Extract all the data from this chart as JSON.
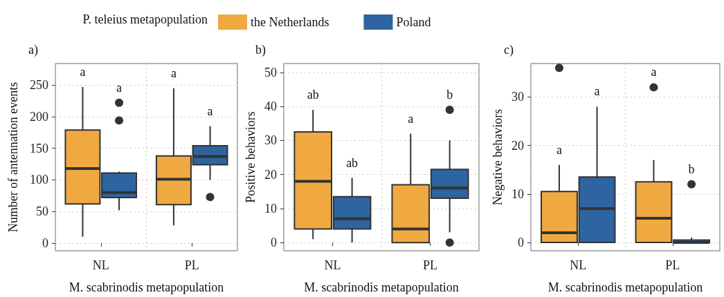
{
  "chart_data": [
    {
      "type": "box",
      "title": "a)",
      "legend_title": "P. teleius metapopulation",
      "xlabel": "M. scabrinodis metapopulation",
      "ylabel": "Number of antennation events",
      "categories": [
        "NL",
        "PL"
      ],
      "ylim": [
        -12,
        284
      ],
      "yticks": [
        0,
        50,
        100,
        150,
        200,
        250
      ],
      "grid": true,
      "legend": "top",
      "series": [
        {
          "name": "the Netherlands",
          "color": "#f0a940",
          "boxes": [
            {
              "low": 10,
              "q1": 62,
              "median": 118,
              "q3": 179,
              "high": 247
            },
            {
              "low": 28,
              "q1": 61,
              "median": 101,
              "q3": 138,
              "high": 245
            }
          ]
        },
        {
          "name": "Poland",
          "color": "#2e64a0",
          "boxes": [
            {
              "low": 52,
              "q1": 72,
              "median": 80,
              "q3": 111,
              "high": 113,
              "outliers": [
                222,
                194
              ]
            },
            {
              "low": 100,
              "q1": 124,
              "median": 137,
              "q3": 154,
              "high": 185,
              "outliers": [
                73
              ]
            }
          ]
        }
      ],
      "annotations": [
        "a",
        "a",
        "a",
        "a"
      ]
    },
    {
      "type": "box",
      "title": "b)",
      "xlabel": "M. scabrinodis metapopulation",
      "ylabel": "Positive behaviors",
      "categories": [
        "NL",
        "PL"
      ],
      "ylim": [
        -2.4,
        52.6
      ],
      "yticks": [
        0,
        10,
        20,
        30,
        40,
        50
      ],
      "grid": true,
      "legend": false,
      "series": [
        {
          "color": "#f0a940",
          "boxes": [
            {
              "low": 1,
              "q1": 4,
              "median": 18,
              "q3": 32.5,
              "high": 39
            },
            {
              "low": 0,
              "q1": 0,
              "median": 4,
              "q3": 17,
              "high": 32
            }
          ]
        },
        {
          "color": "#2e64a0",
          "boxes": [
            {
              "low": 0,
              "q1": 4,
              "median": 7,
              "q3": 13.5,
              "high": 19
            },
            {
              "low": 3,
              "q1": 13,
              "median": 16,
              "q3": 21.5,
              "high": 30,
              "outliers": [
                39,
                0
              ]
            }
          ]
        }
      ],
      "annotations": [
        "ab",
        "ab",
        "a",
        "b"
      ]
    },
    {
      "type": "box",
      "title": "c)",
      "xlabel": "M. scabrinodis metapopulation",
      "ylabel": "Negative behaviors",
      "categories": [
        "NL",
        "PL"
      ],
      "ylim": [
        -1.7,
        36.9
      ],
      "yticks": [
        0,
        10,
        20,
        30
      ],
      "grid": true,
      "legend": false,
      "series": [
        {
          "color": "#f0a940",
          "boxes": [
            {
              "low": 0,
              "q1": 0,
              "median": 2,
              "q3": 10.5,
              "high": 16,
              "outliers": [
                36
              ]
            },
            {
              "low": 0,
              "q1": 0,
              "median": 5,
              "q3": 12.5,
              "high": 17,
              "outliers": [
                32
              ]
            }
          ]
        },
        {
          "color": "#2e64a0",
          "boxes": [
            {
              "low": 0,
              "q1": 0,
              "median": 7,
              "q3": 13.5,
              "high": 28
            },
            {
              "low": 0,
              "q1": 0,
              "median": 0,
              "q3": 0.5,
              "high": 1,
              "outliers": [
                12
              ]
            }
          ]
        }
      ],
      "annotations": [
        "a",
        "a",
        "a",
        "b"
      ]
    }
  ]
}
